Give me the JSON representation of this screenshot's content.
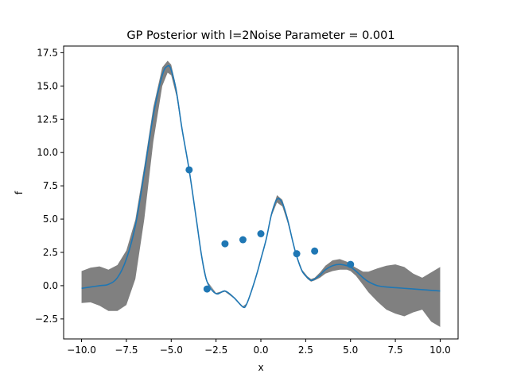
{
  "chart_data": {
    "type": "line",
    "title": "GP Posterior with l=2Noise Parameter = 0.001",
    "xlabel": "x",
    "ylabel": "f",
    "xlim": [
      -11.0,
      11.0
    ],
    "ylim": [
      -4.0,
      18.0
    ],
    "xticks": [
      -10.0,
      -7.5,
      -5.0,
      -2.5,
      0.0,
      2.5,
      5.0,
      7.5,
      10.0
    ],
    "xtick_labels": [
      "−10.0",
      "−7.5",
      "−5.0",
      "−2.5",
      "0.0",
      "2.5",
      "5.0",
      "7.5",
      "10.0"
    ],
    "yticks": [
      -2.5,
      0.0,
      2.5,
      5.0,
      7.5,
      10.0,
      12.5,
      15.0,
      17.5
    ],
    "ytick_labels": [
      "−2.5",
      "0.0",
      "2.5",
      "5.0",
      "7.5",
      "10.0",
      "12.5",
      "15.0",
      "17.5"
    ],
    "grid": false,
    "colors": {
      "mean_line": "#1f77b4",
      "band": "#808080",
      "points": "#1f77b4"
    },
    "series": [
      {
        "kind": "mean",
        "x": [
          -10.0,
          -9.5,
          -9.0,
          -8.5,
          -8.0,
          -7.5,
          -7.0,
          -6.5,
          -6.0,
          -5.5,
          -5.2,
          -5.0,
          -4.7,
          -4.4,
          -4.0,
          -3.6,
          -3.3,
          -3.0,
          -2.5,
          -2.0,
          -1.5,
          -1.0,
          -0.8,
          -0.5,
          -0.2,
          0.0,
          0.3,
          0.6,
          0.9,
          1.2,
          1.5,
          1.8,
          2.0,
          2.3,
          2.6,
          2.8,
          3.0,
          3.3,
          3.6,
          4.0,
          4.4,
          4.8,
          5.0,
          5.3,
          5.7,
          6.0,
          6.5,
          7.0,
          7.5,
          8.0,
          8.5,
          9.0,
          9.5,
          10.0
        ],
        "y": [
          -0.2,
          -0.1,
          0.0,
          0.1,
          0.6,
          2.0,
          4.5,
          8.5,
          12.8,
          15.8,
          16.5,
          16.2,
          14.5,
          11.8,
          8.7,
          5.0,
          2.2,
          0.3,
          -0.6,
          -0.4,
          -0.9,
          -1.6,
          -1.4,
          -0.3,
          1.0,
          2.0,
          3.5,
          5.4,
          6.5,
          6.2,
          4.9,
          3.2,
          2.2,
          1.1,
          0.6,
          0.4,
          0.5,
          0.8,
          1.2,
          1.5,
          1.6,
          1.5,
          1.4,
          1.1,
          0.6,
          0.3,
          0.0,
          -0.1,
          -0.15,
          -0.2,
          -0.25,
          -0.3,
          -0.35,
          -0.4
        ]
      },
      {
        "kind": "band_upper",
        "x": [
          -10.0,
          -9.5,
          -9.0,
          -8.5,
          -8.0,
          -7.5,
          -7.0,
          -6.5,
          -6.0,
          -5.5,
          -5.2,
          -5.0,
          -4.7,
          -4.4,
          -4.0,
          -3.6,
          -3.3,
          -3.0,
          -2.5,
          -2.0,
          -1.5,
          -1.0,
          -0.8,
          -0.5,
          -0.2,
          0.0,
          0.3,
          0.6,
          0.9,
          1.2,
          1.5,
          1.8,
          2.0,
          2.3,
          2.6,
          2.8,
          3.0,
          3.3,
          3.6,
          4.0,
          4.4,
          4.8,
          5.0,
          5.3,
          5.7,
          6.0,
          6.5,
          7.0,
          7.5,
          8.0,
          8.5,
          9.0,
          9.5,
          10.0
        ],
        "y": [
          1.1,
          1.35,
          1.45,
          1.2,
          1.55,
          2.65,
          4.95,
          9.0,
          13.4,
          16.4,
          16.9,
          16.6,
          14.8,
          12.0,
          8.8,
          5.1,
          2.3,
          0.35,
          -0.55,
          -0.35,
          -0.85,
          -1.55,
          -1.35,
          -0.25,
          1.05,
          2.05,
          3.6,
          5.55,
          6.8,
          6.45,
          5.1,
          3.3,
          2.3,
          1.2,
          0.7,
          0.5,
          0.6,
          1.0,
          1.5,
          1.9,
          2.0,
          1.8,
          1.6,
          1.35,
          1.05,
          1.05,
          1.3,
          1.5,
          1.6,
          1.4,
          0.9,
          0.6,
          1.0,
          1.4
        ]
      },
      {
        "kind": "band_lower",
        "x": [
          -10.0,
          -9.5,
          -9.0,
          -8.5,
          -8.0,
          -7.5,
          -7.0,
          -6.5,
          -6.0,
          -5.5,
          -5.2,
          -5.0,
          -4.7,
          -4.4,
          -4.0,
          -3.6,
          -3.3,
          -3.0,
          -2.5,
          -2.0,
          -1.5,
          -1.0,
          -0.8,
          -0.5,
          -0.2,
          0.0,
          0.3,
          0.6,
          0.9,
          1.2,
          1.5,
          1.8,
          2.0,
          2.3,
          2.6,
          2.8,
          3.0,
          3.3,
          3.6,
          4.0,
          4.4,
          4.8,
          5.0,
          5.3,
          5.7,
          6.0,
          6.5,
          7.0,
          7.5,
          8.0,
          8.5,
          9.0,
          9.5,
          10.0
        ],
        "y": [
          -1.3,
          -1.25,
          -1.5,
          -1.9,
          -1.9,
          -1.45,
          0.5,
          5.0,
          10.8,
          15.0,
          16.0,
          15.8,
          14.2,
          11.6,
          8.6,
          4.9,
          2.1,
          0.25,
          -0.65,
          -0.45,
          -0.95,
          -1.65,
          -1.45,
          -0.35,
          0.95,
          1.95,
          3.4,
          5.25,
          6.25,
          5.95,
          4.7,
          3.1,
          2.1,
          1.0,
          0.5,
          0.3,
          0.4,
          0.6,
          0.9,
          1.1,
          1.2,
          1.2,
          1.1,
          0.75,
          0.05,
          -0.5,
          -1.2,
          -1.8,
          -2.1,
          -2.3,
          -2.0,
          -1.8,
          -2.7,
          -3.1
        ]
      },
      {
        "kind": "observations",
        "x": [
          -4.0,
          -3.0,
          -2.0,
          -1.0,
          0.0,
          2.0,
          3.0,
          5.0
        ],
        "y": [
          8.7,
          -0.25,
          3.15,
          3.45,
          3.9,
          2.4,
          2.6,
          1.6
        ]
      }
    ]
  }
}
